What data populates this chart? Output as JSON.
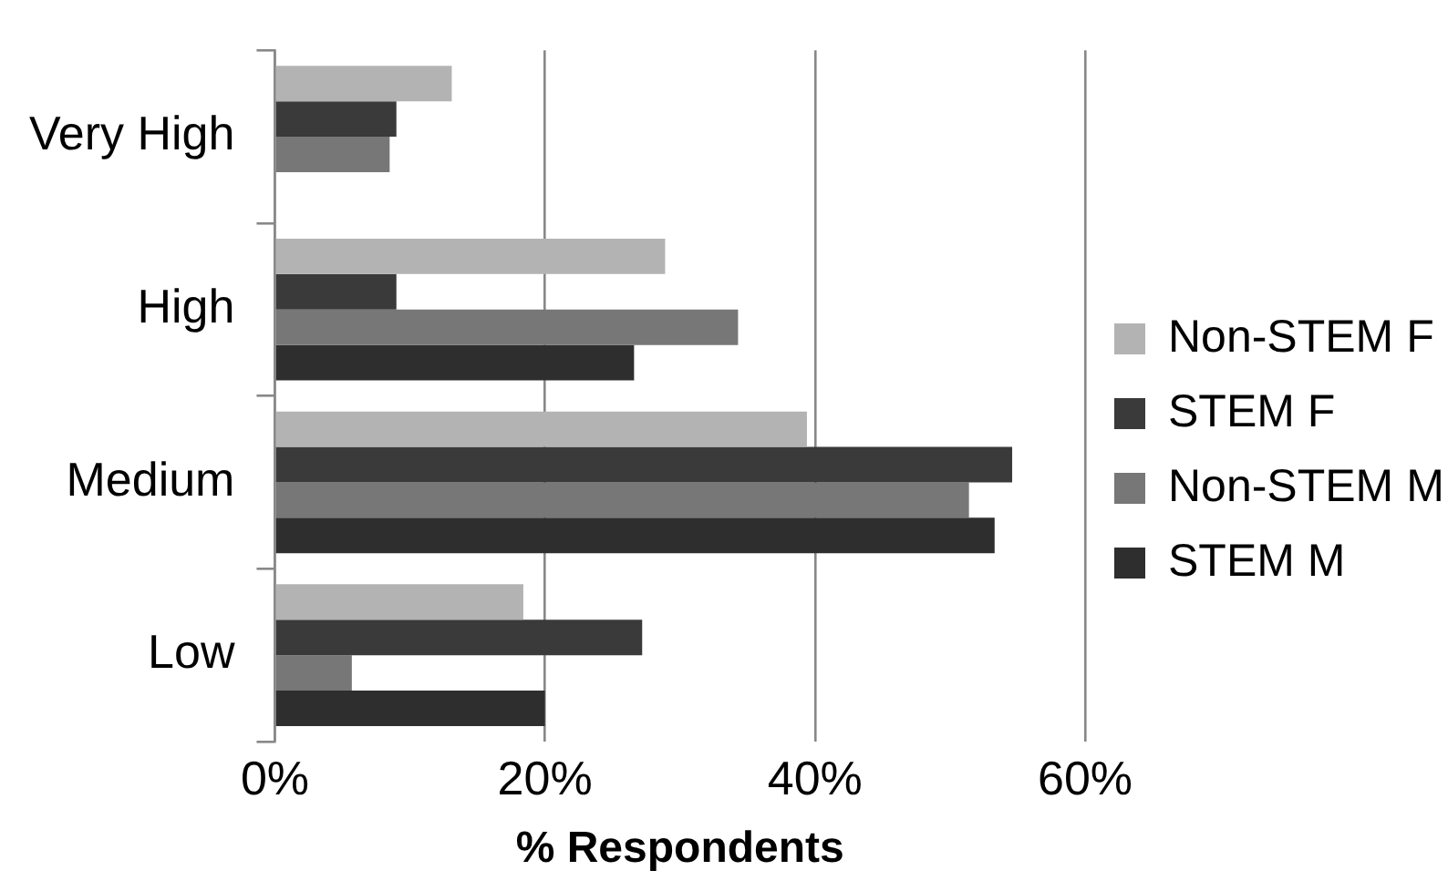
{
  "chart_data": {
    "type": "bar",
    "orientation": "horizontal",
    "xlabel": "% Respondents",
    "categories": [
      "Very High",
      "High",
      "Medium",
      "Low"
    ],
    "series": [
      {
        "name": "Non-STEM F",
        "color": "#b3b3b3",
        "values": [
          13.1,
          28.9,
          39.4,
          18.4
        ]
      },
      {
        "name": "STEM F",
        "color": "#3a3a3a",
        "values": [
          9.0,
          9.0,
          54.6,
          27.2
        ]
      },
      {
        "name": "Non-STEM M",
        "color": "#777777",
        "values": [
          8.5,
          34.3,
          51.4,
          5.7
        ]
      },
      {
        "name": "STEM M",
        "color": "#2e2e2e",
        "values": [
          0,
          26.6,
          53.3,
          20.0
        ]
      }
    ],
    "xlim": [
      0,
      60
    ],
    "xticks": [
      {
        "value": 0,
        "label": "0%"
      },
      {
        "value": 20,
        "label": "20%"
      },
      {
        "value": 40,
        "label": "40%"
      },
      {
        "value": 60,
        "label": "60%"
      }
    ],
    "grid": "x",
    "legend": "right"
  }
}
